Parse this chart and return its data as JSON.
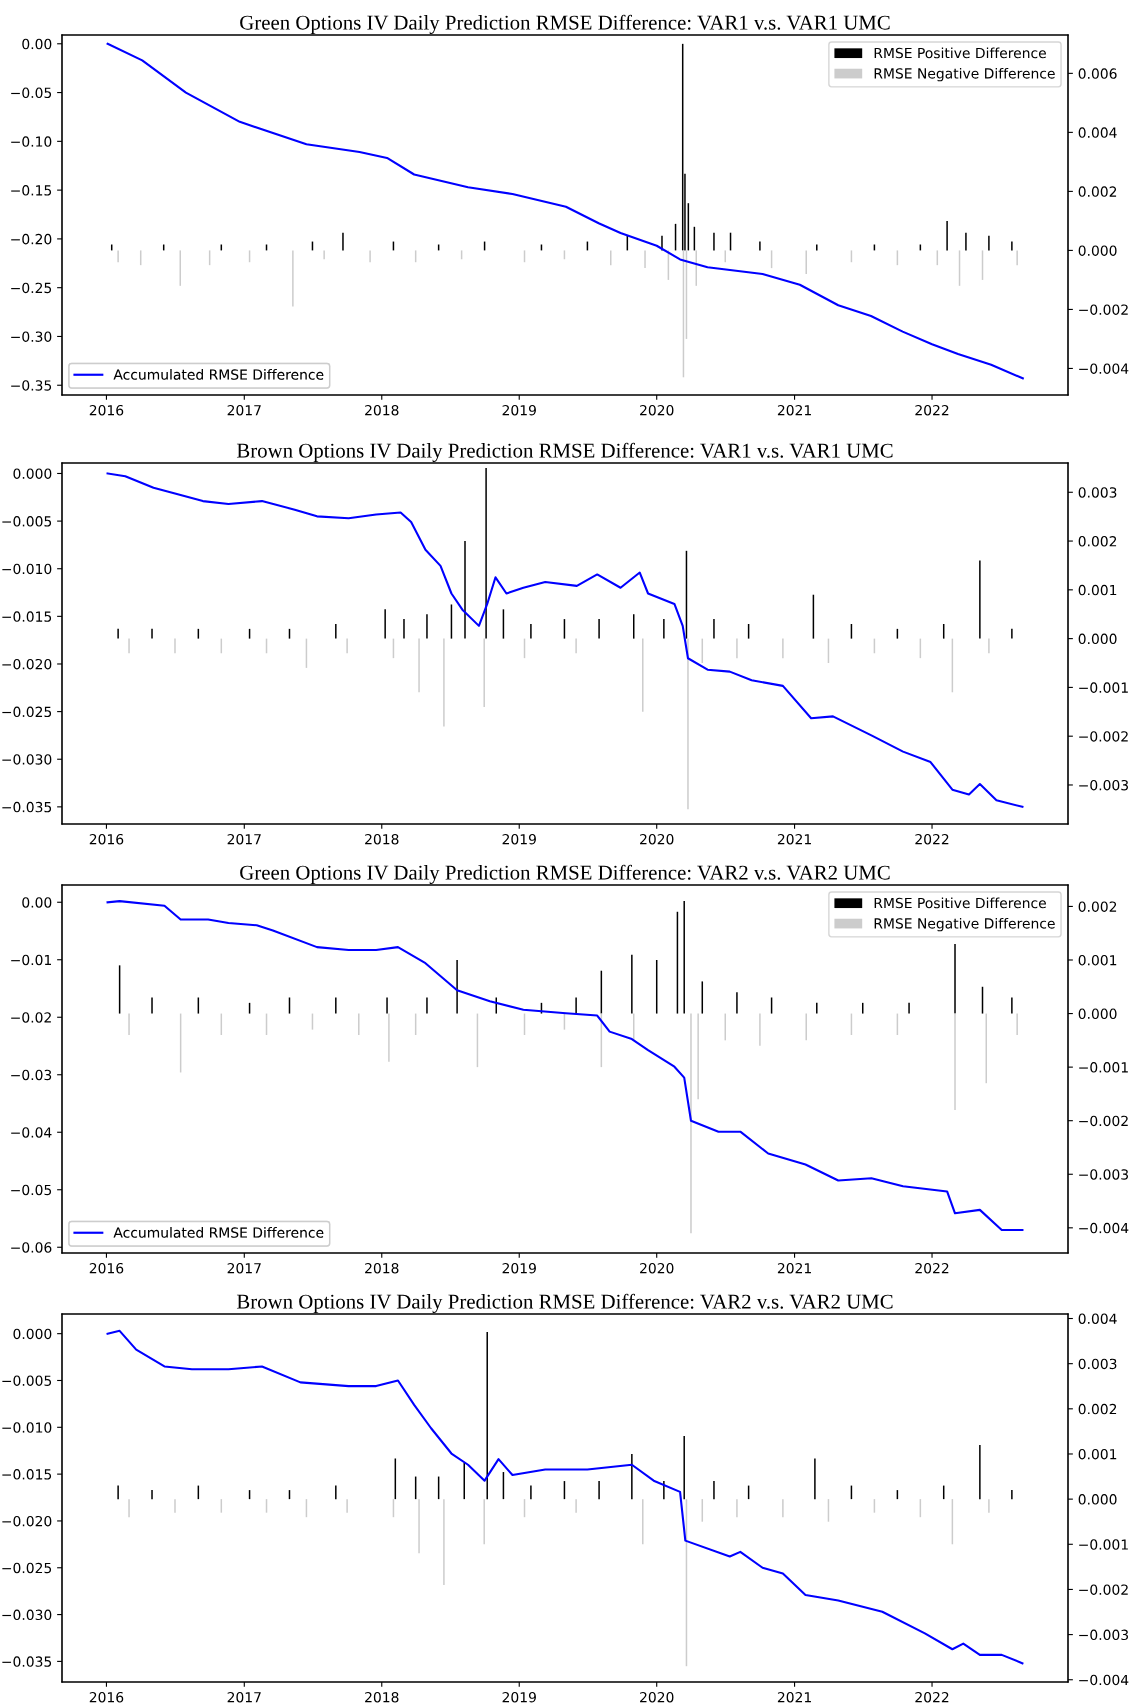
{
  "chart_data": [
    {
      "type": "bar",
      "title": "Green Options IV Daily Prediction RMSE Difference: VAR1 v.s. VAR1 UMC",
      "legend": "top right",
      "grid": false,
      "xlim": [
        "2015-09-05",
        "2022-12-28"
      ],
      "xticks": [
        {
          "value": "2016-01-01",
          "label": "2016"
        },
        {
          "value": "2017-01-01",
          "label": "2017"
        },
        {
          "value": "2018-01-01",
          "label": "2018"
        },
        {
          "value": "2019-01-01",
          "label": "2019"
        },
        {
          "value": "2020-01-01",
          "label": "2020"
        },
        {
          "value": "2021-01-01",
          "label": "2021"
        },
        {
          "value": "2022-01-01",
          "label": "2022"
        }
      ],
      "ylim": [
        -0.36,
        0.009
      ],
      "yticks": [
        {
          "value": -0.35,
          "label": "−0.35"
        },
        {
          "value": -0.3,
          "label": "−0.30"
        },
        {
          "value": -0.25,
          "label": "−0.25"
        },
        {
          "value": -0.2,
          "label": "−0.20"
        },
        {
          "value": -0.15,
          "label": "−0.15"
        },
        {
          "value": -0.1,
          "label": "−0.10"
        },
        {
          "value": -0.05,
          "label": "−0.05"
        },
        {
          "value": 0,
          "label": "0.00"
        }
      ],
      "y2lim": [
        -0.0049,
        0.0073
      ],
      "y2ticks": [
        {
          "value": -0.004,
          "label": "−0.004"
        },
        {
          "value": -0.002,
          "label": "−0.002"
        },
        {
          "value": 0,
          "label": "0.000"
        },
        {
          "value": 0.002,
          "label": "0.002"
        },
        {
          "value": 0.004,
          "label": "0.004"
        },
        {
          "value": 0.006,
          "label": "0.006"
        }
      ],
      "series": [
        {
          "name": "RMSE Positive Difference",
          "axis": "y2",
          "color": "#000000",
          "x": [
            "2016-01-15",
            "2016-06-01",
            "2016-11-01",
            "2017-03-01",
            "2017-07-01",
            "2017-09-20",
            "2018-02-01",
            "2018-06-01",
            "2018-10-01",
            "2019-03-01",
            "2019-07-01",
            "2019-10-15",
            "2020-01-15",
            "2020-02-20",
            "2020-03-10",
            "2020-03-16",
            "2020-03-25",
            "2020-04-10",
            "2020-06-01",
            "2020-07-15",
            "2020-10-01",
            "2021-03-01",
            "2021-08-01",
            "2021-12-01",
            "2022-02-10",
            "2022-04-01",
            "2022-06-01",
            "2022-08-01"
          ],
          "values": [
            0.0002,
            0.0002,
            0.0002,
            0.0002,
            0.0003,
            0.0006,
            0.0003,
            0.0002,
            0.0003,
            0.0002,
            0.0003,
            0.0005,
            0.0005,
            0.0009,
            0.007,
            0.0026,
            0.0016,
            0.0008,
            0.0006,
            0.0006,
            0.0003,
            0.0002,
            0.0002,
            0.0002,
            0.001,
            0.0006,
            0.0005,
            0.0003
          ]
        },
        {
          "name": "RMSE Negative Difference",
          "axis": "y2",
          "color": "#cccccc",
          "x": [
            "2016-02-01",
            "2016-04-01",
            "2016-07-15",
            "2016-10-01",
            "2017-01-15",
            "2017-05-10",
            "2017-08-01",
            "2017-12-01",
            "2018-04-01",
            "2018-08-01",
            "2019-01-15",
            "2019-05-01",
            "2019-09-01",
            "2019-12-01",
            "2020-02-01",
            "2020-03-12",
            "2020-03-20",
            "2020-04-15",
            "2020-07-01",
            "2020-11-01",
            "2021-02-01",
            "2021-06-01",
            "2021-10-01",
            "2022-01-15",
            "2022-03-15",
            "2022-05-15",
            "2022-08-15"
          ],
          "values": [
            -0.0004,
            -0.0005,
            -0.0012,
            -0.0005,
            -0.0004,
            -0.0019,
            -0.0003,
            -0.0004,
            -0.0004,
            -0.0003,
            -0.0004,
            -0.0003,
            -0.0005,
            -0.0006,
            -0.001,
            -0.0043,
            -0.003,
            -0.0012,
            -0.0004,
            -0.0006,
            -0.0008,
            -0.0004,
            -0.0005,
            -0.0005,
            -0.0012,
            -0.001,
            -0.0005
          ]
        },
        {
          "name": "Accumulated RMSE Difference",
          "type": "line",
          "color": "#0000ff",
          "x": [
            "2016-01-04",
            "2016-04-05",
            "2016-07-30",
            "2016-12-20",
            "2017-06-15",
            "2017-11-03",
            "2018-01-15",
            "2018-03-28",
            "2018-08-18",
            "2018-12-14",
            "2019-05-05",
            "2019-07-31",
            "2019-09-27",
            "2020-01-01",
            "2020-03-03",
            "2020-05-15",
            "2020-10-08",
            "2021-01-15",
            "2021-04-27",
            "2021-07-23",
            "2021-10-15",
            "2022-01-01",
            "2022-03-11",
            "2022-06-07",
            "2022-08-30"
          ],
          "values": [
            0,
            -0.017,
            -0.05,
            -0.08,
            -0.103,
            -0.111,
            -0.117,
            -0.134,
            -0.147,
            -0.154,
            -0.167,
            -0.184,
            -0.194,
            -0.207,
            -0.221,
            -0.229,
            -0.236,
            -0.247,
            -0.268,
            -0.279,
            -0.295,
            -0.308,
            -0.318,
            -0.329,
            -0.343
          ]
        }
      ]
    },
    {
      "type": "bar",
      "title": "Brown Options IV Daily Prediction RMSE Difference: VAR1 v.s. VAR1 UMC",
      "grid": false,
      "xlim": [
        "2015-09-05",
        "2022-12-28"
      ],
      "xticks": [
        {
          "value": "2016-01-01",
          "label": "2016"
        },
        {
          "value": "2017-01-01",
          "label": "2017"
        },
        {
          "value": "2018-01-01",
          "label": "2018"
        },
        {
          "value": "2019-01-01",
          "label": "2019"
        },
        {
          "value": "2020-01-01",
          "label": "2020"
        },
        {
          "value": "2021-01-01",
          "label": "2021"
        },
        {
          "value": "2022-01-01",
          "label": "2022"
        }
      ],
      "ylim": [
        -0.0368,
        0.0011
      ],
      "yticks": [
        {
          "value": -0.035,
          "label": "−0.035"
        },
        {
          "value": -0.03,
          "label": "−0.030"
        },
        {
          "value": -0.025,
          "label": "−0.025"
        },
        {
          "value": -0.02,
          "label": "−0.020"
        },
        {
          "value": -0.015,
          "label": "−0.015"
        },
        {
          "value": -0.01,
          "label": "−0.010"
        },
        {
          "value": -0.005,
          "label": "−0.005"
        },
        {
          "value": 0,
          "label": "0.000"
        }
      ],
      "y2lim": [
        -0.0038,
        0.0036
      ],
      "y2ticks": [
        {
          "value": -0.003,
          "label": "−0.003"
        },
        {
          "value": -0.002,
          "label": "−0.002"
        },
        {
          "value": -0.001,
          "label": "−0.001"
        },
        {
          "value": 0,
          "label": "0.000"
        },
        {
          "value": 0.001,
          "label": "0.001"
        },
        {
          "value": 0.002,
          "label": "0.002"
        },
        {
          "value": 0.003,
          "label": "0.003"
        }
      ],
      "series": [
        {
          "axis": "y2",
          "color": "#000000",
          "x": [
            "2016-02-01",
            "2016-05-01",
            "2016-09-01",
            "2017-01-15",
            "2017-05-01",
            "2017-09-01",
            "2018-01-10",
            "2018-03-01",
            "2018-05-01",
            "2018-07-05",
            "2018-08-10",
            "2018-10-05",
            "2018-11-20",
            "2019-02-01",
            "2019-05-01",
            "2019-08-01",
            "2019-11-01",
            "2020-01-20",
            "2020-03-20",
            "2020-06-01",
            "2020-09-01",
            "2021-02-20",
            "2021-06-01",
            "2021-10-01",
            "2022-02-01",
            "2022-05-08",
            "2022-08-01"
          ],
          "values": [
            0.0002,
            0.0002,
            0.0002,
            0.0002,
            0.0002,
            0.0003,
            0.0006,
            0.0004,
            0.0005,
            0.0007,
            0.002,
            0.0035,
            0.0006,
            0.0003,
            0.0004,
            0.0004,
            0.0005,
            0.0004,
            0.0018,
            0.0004,
            0.0003,
            0.0009,
            0.0003,
            0.0002,
            0.0003,
            0.0016,
            0.0002
          ]
        },
        {
          "axis": "y2",
          "color": "#cccccc",
          "x": [
            "2016-03-01",
            "2016-07-01",
            "2016-11-01",
            "2017-03-01",
            "2017-06-15",
            "2017-10-01",
            "2018-02-01",
            "2018-04-10",
            "2018-06-15",
            "2018-09-30",
            "2019-01-15",
            "2019-06-01",
            "2019-11-25",
            "2020-03-24",
            "2020-05-01",
            "2020-08-01",
            "2020-12-01",
            "2021-04-01",
            "2021-08-01",
            "2021-12-01",
            "2022-02-24",
            "2022-06-01"
          ],
          "values": [
            -0.0003,
            -0.0003,
            -0.0003,
            -0.0003,
            -0.0006,
            -0.0003,
            -0.0004,
            -0.0011,
            -0.0018,
            -0.0014,
            -0.0004,
            -0.0003,
            -0.0015,
            -0.0035,
            -0.0005,
            -0.0004,
            -0.0004,
            -0.0005,
            -0.0003,
            -0.0004,
            -0.0011,
            -0.0003
          ]
        },
        {
          "type": "line",
          "color": "#0000ff",
          "x": [
            "2016-01-04",
            "2016-02-20",
            "2016-05-05",
            "2016-07-01",
            "2016-09-13",
            "2016-11-20",
            "2017-02-17",
            "2017-05-15",
            "2017-07-13",
            "2017-10-05",
            "2017-12-17",
            "2018-02-20",
            "2018-03-20",
            "2018-04-27",
            "2018-06-06",
            "2018-07-05",
            "2018-08-03",
            "2018-09-16",
            "2018-10-08",
            "2018-10-30",
            "2018-11-28",
            "2019-01-12",
            "2019-03-11",
            "2019-06-03",
            "2019-07-27",
            "2019-09-27",
            "2019-11-17",
            "2019-12-09",
            "2020-02-17",
            "2020-03-10",
            "2020-03-24",
            "2020-05-15",
            "2020-07-13",
            "2020-09-09",
            "2020-12-01",
            "2021-02-14",
            "2021-04-13",
            "2021-07-24",
            "2021-10-16",
            "2021-12-28",
            "2022-02-24",
            "2022-04-09",
            "2022-05-08",
            "2022-06-21",
            "2022-08-29"
          ],
          "values": [
            0,
            -0.0003,
            -0.0015,
            -0.0021,
            -0.0029,
            -0.0032,
            -0.0029,
            -0.0038,
            -0.0045,
            -0.0047,
            -0.0043,
            -0.0041,
            -0.0051,
            -0.008,
            -0.0097,
            -0.0126,
            -0.0143,
            -0.016,
            -0.0137,
            -0.0109,
            -0.0126,
            -0.012,
            -0.0114,
            -0.0118,
            -0.0106,
            -0.012,
            -0.0104,
            -0.0126,
            -0.0137,
            -0.016,
            -0.0194,
            -0.0206,
            -0.0208,
            -0.0217,
            -0.0223,
            -0.0257,
            -0.0255,
            -0.0275,
            -0.0292,
            -0.0303,
            -0.0332,
            -0.0337,
            -0.0326,
            -0.0343,
            -0.035
          ]
        }
      ]
    },
    {
      "type": "bar",
      "title": "Green Options IV Daily Prediction RMSE Difference: VAR2 v.s. VAR2 UMC",
      "legend": "top right",
      "grid": false,
      "xlim": [
        "2015-09-05",
        "2022-12-28"
      ],
      "xticks": [
        {
          "value": "2016-01-01",
          "label": "2016"
        },
        {
          "value": "2017-01-01",
          "label": "2017"
        },
        {
          "value": "2018-01-01",
          "label": "2018"
        },
        {
          "value": "2019-01-01",
          "label": "2019"
        },
        {
          "value": "2020-01-01",
          "label": "2020"
        },
        {
          "value": "2021-01-01",
          "label": "2021"
        },
        {
          "value": "2022-01-01",
          "label": "2022"
        }
      ],
      "ylim": [
        -0.061,
        0.003
      ],
      "yticks": [
        {
          "value": -0.06,
          "label": "−0.06"
        },
        {
          "value": -0.05,
          "label": "−0.05"
        },
        {
          "value": -0.04,
          "label": "−0.04"
        },
        {
          "value": -0.03,
          "label": "−0.03"
        },
        {
          "value": -0.02,
          "label": "−0.02"
        },
        {
          "value": -0.01,
          "label": "−0.01"
        },
        {
          "value": 0,
          "label": "0.00"
        }
      ],
      "y2lim": [
        -0.00447,
        0.0024
      ],
      "y2ticks": [
        {
          "value": -0.004,
          "label": "−0.004"
        },
        {
          "value": -0.003,
          "label": "−0.003"
        },
        {
          "value": -0.002,
          "label": "−0.002"
        },
        {
          "value": -0.001,
          "label": "−0.001"
        },
        {
          "value": 0,
          "label": "0.000"
        },
        {
          "value": 0.001,
          "label": "0.001"
        },
        {
          "value": 0.002,
          "label": "0.002"
        }
      ],
      "series": [
        {
          "name": "RMSE Positive Difference",
          "axis": "y2",
          "color": "#000000",
          "x": [
            "2016-02-05",
            "2016-05-01",
            "2016-09-01",
            "2017-01-15",
            "2017-05-01",
            "2017-09-01",
            "2018-01-15",
            "2018-05-01",
            "2018-07-20",
            "2018-11-01",
            "2019-03-01",
            "2019-06-01",
            "2019-08-07",
            "2019-10-27",
            "2020-01-01",
            "2020-02-25",
            "2020-03-14",
            "2020-05-01",
            "2020-08-01",
            "2020-11-01",
            "2021-03-01",
            "2021-07-01",
            "2021-11-01",
            "2022-03-03",
            "2022-05-15",
            "2022-08-01"
          ],
          "values": [
            0.0009,
            0.0003,
            0.0003,
            0.0002,
            0.0003,
            0.0003,
            0.0003,
            0.0003,
            0.001,
            0.0003,
            0.0002,
            0.0003,
            0.0008,
            0.0011,
            0.001,
            0.0019,
            0.0021,
            0.0006,
            0.0004,
            0.0003,
            0.0002,
            0.0002,
            0.0002,
            0.0013,
            0.0005,
            0.0003
          ]
        },
        {
          "name": "RMSE Negative Difference",
          "axis": "y2",
          "color": "#cccccc",
          "x": [
            "2016-03-01",
            "2016-07-16",
            "2016-11-01",
            "2017-03-01",
            "2017-07-01",
            "2017-11-01",
            "2018-01-20",
            "2018-04-01",
            "2018-09-12",
            "2019-01-15",
            "2019-05-01",
            "2019-08-07",
            "2019-11-01",
            "2020-04-01",
            "2020-04-20",
            "2020-07-01",
            "2020-10-01",
            "2021-02-01",
            "2021-06-01",
            "2021-10-01",
            "2022-03-03",
            "2022-05-25",
            "2022-08-15"
          ],
          "values": [
            -0.0004,
            -0.0011,
            -0.0004,
            -0.0004,
            -0.0003,
            -0.0004,
            -0.0009,
            -0.0004,
            -0.001,
            -0.0004,
            -0.0003,
            -0.001,
            -0.0005,
            -0.0041,
            -0.0016,
            -0.0005,
            -0.0006,
            -0.0005,
            -0.0004,
            -0.0004,
            -0.0018,
            -0.0013,
            -0.0004
          ]
        },
        {
          "name": "Accumulated RMSE Difference",
          "type": "line",
          "color": "#0000ff",
          "x": [
            "2016-01-04",
            "2016-02-05",
            "2016-06-03",
            "2016-07-16",
            "2016-09-27",
            "2016-11-20",
            "2017-02-03",
            "2017-03-18",
            "2017-07-13",
            "2017-10-05",
            "2017-12-17",
            "2018-02-13",
            "2018-04-27",
            "2018-07-20",
            "2018-10-15",
            "2019-01-12",
            "2019-05-05",
            "2019-07-27",
            "2019-08-29",
            "2019-10-27",
            "2019-12-09",
            "2020-02-17",
            "2020-03-14",
            "2020-04-01",
            "2020-06-13",
            "2020-08-10",
            "2020-10-23",
            "2021-01-30",
            "2021-04-27",
            "2021-07-24",
            "2021-10-16",
            "2022-02-10",
            "2022-03-03",
            "2022-05-08",
            "2022-07-05",
            "2022-08-29"
          ],
          "values": [
            0,
            0.0002,
            -0.0006,
            -0.003,
            -0.003,
            -0.0036,
            -0.004,
            -0.0049,
            -0.0078,
            -0.0083,
            -0.0083,
            -0.0078,
            -0.0106,
            -0.0153,
            -0.0172,
            -0.0187,
            -0.0193,
            -0.0197,
            -0.0225,
            -0.0238,
            -0.0257,
            -0.0286,
            -0.0305,
            -0.038,
            -0.0399,
            -0.0399,
            -0.0437,
            -0.0456,
            -0.0484,
            -0.048,
            -0.0494,
            -0.0503,
            -0.0541,
            -0.0535,
            -0.057,
            -0.057
          ]
        }
      ]
    },
    {
      "type": "bar",
      "title": "Brown Options IV Daily Prediction RMSE Difference: VAR2 v.s. VAR2 UMC",
      "grid": false,
      "xlim": [
        "2015-09-05",
        "2022-12-28"
      ],
      "xticks": [
        {
          "value": "2016-01-01",
          "label": "2016"
        },
        {
          "value": "2017-01-01",
          "label": "2017"
        },
        {
          "value": "2018-01-01",
          "label": "2018"
        },
        {
          "value": "2019-01-01",
          "label": "2019"
        },
        {
          "value": "2020-01-01",
          "label": "2020"
        },
        {
          "value": "2021-01-01",
          "label": "2021"
        },
        {
          "value": "2022-01-01",
          "label": "2022"
        }
      ],
      "ylim": [
        -0.0372,
        0.0021
      ],
      "yticks": [
        {
          "value": -0.035,
          "label": "−0.035"
        },
        {
          "value": -0.03,
          "label": "−0.030"
        },
        {
          "value": -0.025,
          "label": "−0.025"
        },
        {
          "value": -0.02,
          "label": "−0.020"
        },
        {
          "value": -0.015,
          "label": "−0.015"
        },
        {
          "value": -0.01,
          "label": "−0.010"
        },
        {
          "value": -0.005,
          "label": "−0.005"
        },
        {
          "value": 0,
          "label": "0.000"
        }
      ],
      "y2lim": [
        -0.00405,
        0.0041
      ],
      "y2ticks": [
        {
          "value": -0.004,
          "label": "−0.004"
        },
        {
          "value": -0.003,
          "label": "−0.003"
        },
        {
          "value": -0.002,
          "label": "−0.002"
        },
        {
          "value": -0.001,
          "label": "−0.001"
        },
        {
          "value": 0,
          "label": "0.000"
        },
        {
          "value": 0.001,
          "label": "0.001"
        },
        {
          "value": 0.002,
          "label": "0.002"
        },
        {
          "value": 0.003,
          "label": "0.003"
        },
        {
          "value": 0.004,
          "label": "0.004"
        }
      ],
      "series": [
        {
          "axis": "y2",
          "color": "#000000",
          "x": [
            "2016-02-01",
            "2016-05-01",
            "2016-09-01",
            "2017-01-15",
            "2017-05-01",
            "2017-09-01",
            "2018-02-06",
            "2018-04-01",
            "2018-06-01",
            "2018-08-08",
            "2018-10-08",
            "2018-11-20",
            "2019-02-01",
            "2019-05-01",
            "2019-08-01",
            "2019-10-27",
            "2020-01-20",
            "2020-03-14",
            "2020-06-01",
            "2020-09-01",
            "2021-02-24",
            "2021-06-01",
            "2021-10-01",
            "2022-02-01",
            "2022-05-08",
            "2022-08-01"
          ],
          "values": [
            0.0003,
            0.0002,
            0.0003,
            0.0002,
            0.0002,
            0.0003,
            0.0009,
            0.0005,
            0.0005,
            0.0008,
            0.0037,
            0.0006,
            0.0003,
            0.0004,
            0.0004,
            0.001,
            0.0004,
            0.0014,
            0.0004,
            0.0003,
            0.0009,
            0.0003,
            0.0002,
            0.0003,
            0.0012,
            0.0002
          ]
        },
        {
          "axis": "y2",
          "color": "#cccccc",
          "x": [
            "2016-03-01",
            "2016-07-01",
            "2016-11-01",
            "2017-03-01",
            "2017-06-15",
            "2017-10-01",
            "2018-02-01",
            "2018-04-10",
            "2018-06-15",
            "2018-09-30",
            "2019-01-15",
            "2019-06-01",
            "2019-11-25",
            "2020-03-20",
            "2020-05-01",
            "2020-08-01",
            "2020-12-01",
            "2021-04-01",
            "2021-08-01",
            "2021-12-01",
            "2022-02-24",
            "2022-06-01"
          ],
          "values": [
            -0.0004,
            -0.0003,
            -0.0003,
            -0.0003,
            -0.0004,
            -0.0003,
            -0.0004,
            -0.0012,
            -0.0019,
            -0.001,
            -0.0004,
            -0.0003,
            -0.001,
            -0.0037,
            -0.0005,
            -0.0004,
            -0.0004,
            -0.0005,
            -0.0003,
            -0.0004,
            -0.001,
            -0.0003
          ]
        },
        {
          "type": "line",
          "color": "#0000ff",
          "x": [
            "2016-01-04",
            "2016-02-05",
            "2016-03-20",
            "2016-06-03",
            "2016-08-15",
            "2016-11-20",
            "2017-02-17",
            "2017-05-30",
            "2017-10-05",
            "2017-12-17",
            "2018-02-13",
            "2018-03-28",
            "2018-05-12",
            "2018-07-05",
            "2018-08-18",
            "2018-10-01",
            "2018-11-07",
            "2018-12-14",
            "2019-03-11",
            "2019-07-01",
            "2019-10-27",
            "2019-12-24",
            "2020-03-03",
            "2020-03-17",
            "2020-07-13",
            "2020-08-10",
            "2020-10-08",
            "2020-12-01",
            "2021-01-30",
            "2021-04-27",
            "2021-08-22",
            "2021-12-13",
            "2022-02-24",
            "2022-03-25",
            "2022-05-08",
            "2022-07-05",
            "2022-08-29"
          ],
          "values": [
            0,
            0.0003,
            -0.0017,
            -0.0035,
            -0.0038,
            -0.0038,
            -0.0035,
            -0.0052,
            -0.0056,
            -0.0056,
            -0.005,
            -0.0076,
            -0.0101,
            -0.0128,
            -0.014,
            -0.0157,
            -0.0134,
            -0.0151,
            -0.0145,
            -0.0145,
            -0.014,
            -0.0157,
            -0.0169,
            -0.0221,
            -0.0238,
            -0.0233,
            -0.025,
            -0.0256,
            -0.0279,
            -0.0285,
            -0.0297,
            -0.032,
            -0.0337,
            -0.0331,
            -0.0343,
            -0.0343,
            -0.0352
          ]
        }
      ]
    }
  ]
}
